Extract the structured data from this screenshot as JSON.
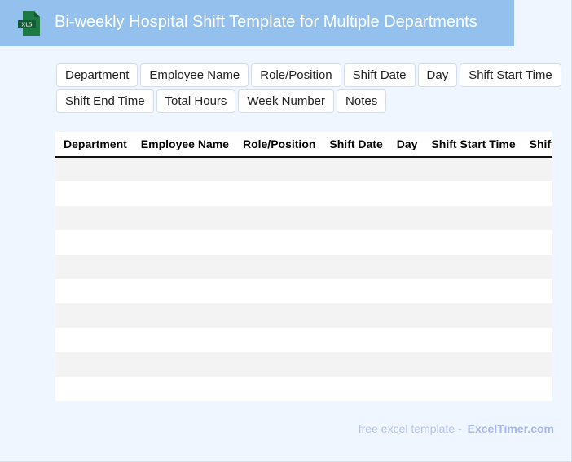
{
  "header": {
    "title": "Bi-weekly Hospital Shift Template for Multiple Departments",
    "icon": "xls-file-icon",
    "icon_text": "XLS"
  },
  "fields": [
    "Department",
    "Employee Name",
    "Role/Position",
    "Shift Date",
    "Day",
    "Shift Start Time",
    "Shift End Time",
    "Total Hours",
    "Week Number",
    "Notes"
  ],
  "table": {
    "columns": [
      "Department",
      "Employee Name",
      "Role/Position",
      "Shift Date",
      "Day",
      "Shift Start Time",
      "Shift End Time"
    ],
    "row_count": 10
  },
  "footer": {
    "text": "free excel template -",
    "brand": "ExcelTimer.com"
  },
  "colors": {
    "header_bg": "#93c0ec",
    "page_bg": "#f0f6ff",
    "xls_green": "#1e7a45"
  }
}
